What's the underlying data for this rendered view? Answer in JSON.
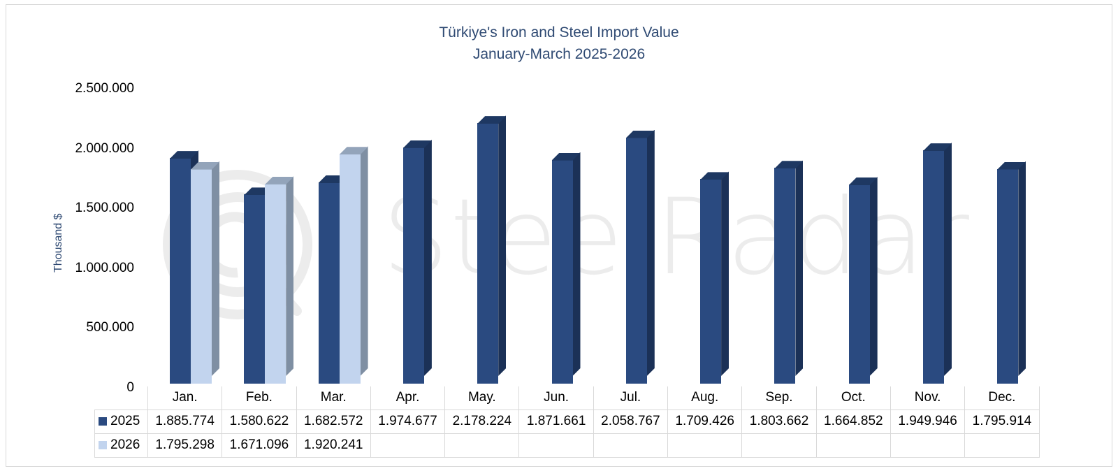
{
  "chart_data": {
    "type": "bar",
    "style": "3d-clustered-column-with-data-table",
    "title": "Türkiye's Iron and Steel Import Value",
    "subtitle": "January-March 2025-2026",
    "xlabel": "",
    "ylabel": "Thousand $",
    "ylim": [
      0,
      2500000
    ],
    "yticks": [
      0,
      500000,
      1000000,
      1500000,
      2000000,
      2500000
    ],
    "ytick_labels": [
      "0",
      "500.000",
      "1.000.000",
      "1.500.000",
      "2.000.000",
      "2.500.000"
    ],
    "grid": false,
    "legend_position": "data-table",
    "categories": [
      "Jan.",
      "Feb.",
      "Mar.",
      "Apr.",
      "May.",
      "Jun.",
      "Jul.",
      "Aug.",
      "Sep.",
      "Oct.",
      "Nov.",
      "Dec."
    ],
    "series": [
      {
        "name": "2025",
        "color": "#2a4a80",
        "values": [
          1885774,
          1580622,
          1682572,
          1974677,
          2178224,
          1871661,
          2058767,
          1709426,
          1803662,
          1664852,
          1949946,
          1795914
        ],
        "labels": [
          "1.885.774",
          "1.580.622",
          "1.682.572",
          "1.974.677",
          "2.178.224",
          "1.871.661",
          "2.058.767",
          "1.709.426",
          "1.803.662",
          "1.664.852",
          "1.949.946",
          "1.795.914"
        ]
      },
      {
        "name": "2026",
        "color": "#c2d4ee",
        "values": [
          1795298,
          1671096,
          1920241,
          null,
          null,
          null,
          null,
          null,
          null,
          null,
          null,
          null
        ],
        "labels": [
          "1.795.298",
          "1.671.096",
          "1.920.241",
          "",
          "",
          "",
          "",
          "",
          "",
          "",
          "",
          ""
        ]
      }
    ],
    "watermark": "SteelRadar"
  }
}
